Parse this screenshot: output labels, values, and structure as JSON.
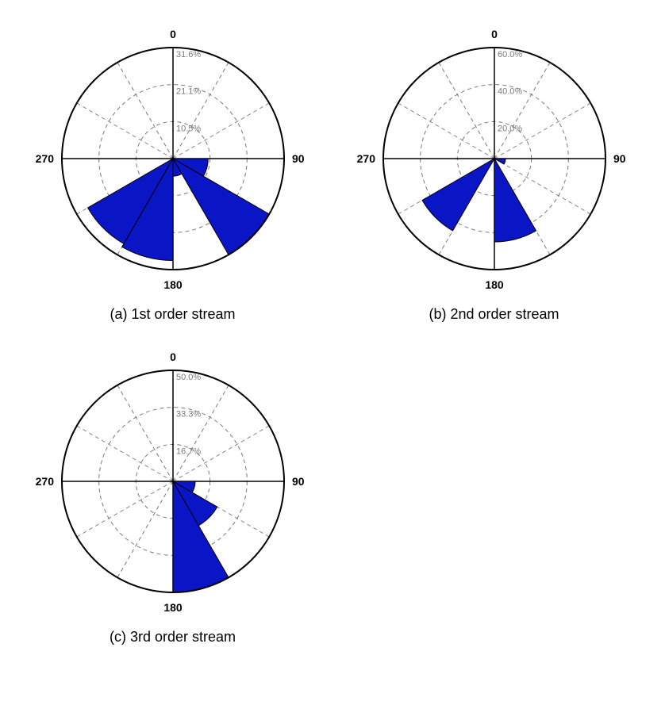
{
  "background_color": "#ffffff",
  "outer_stroke": "#000000",
  "outer_stroke_width": 2,
  "dash_color": "#7a7a7a",
  "dash_pattern": "5,4",
  "dash_width": 1,
  "axis_stroke": "#000000",
  "axis_stroke_width": 1.5,
  "wedge_fill": "#0a16c5",
  "wedge_stroke": "#000000",
  "wedge_stroke_width": 1,
  "axis_font_weight": "bold",
  "axis_font_size": 14,
  "ring_label_font_size": 11,
  "caption_font_size": 18,
  "chart_radius": 140,
  "sector_width": 30,
  "rings": 3,
  "spokes": 12,
  "axis_labels": {
    "top": "0",
    "right": "90",
    "bottom": "180",
    "left": "270"
  },
  "charts": [
    {
      "id": "a",
      "caption": "(a) 1st order stream",
      "max_pct": 31.6,
      "ring_labels": [
        "10.5%",
        "21.1%",
        "31.6%"
      ],
      "sectors": [
        {
          "start": 90,
          "value": 10
        },
        {
          "start": 120,
          "value": 31.6
        },
        {
          "start": 150,
          "value": 5
        },
        {
          "start": 180,
          "value": 29
        },
        {
          "start": 210,
          "value": 28
        }
      ]
    },
    {
      "id": "b",
      "caption": "(b) 2nd order stream",
      "max_pct": 60.0,
      "ring_labels": [
        "20.0%",
        "40.0%",
        "60.0%"
      ],
      "sectors": [
        {
          "start": 90,
          "value": 6
        },
        {
          "start": 150,
          "value": 45
        },
        {
          "start": 210,
          "value": 45
        }
      ]
    },
    {
      "id": "c",
      "caption": "(c) 3rd order stream",
      "max_pct": 50.0,
      "ring_labels": [
        "16.7%",
        "33.3%",
        "50.0%"
      ],
      "sectors": [
        {
          "start": 90,
          "value": 10
        },
        {
          "start": 120,
          "value": 23
        },
        {
          "start": 150,
          "value": 50
        }
      ]
    }
  ]
}
